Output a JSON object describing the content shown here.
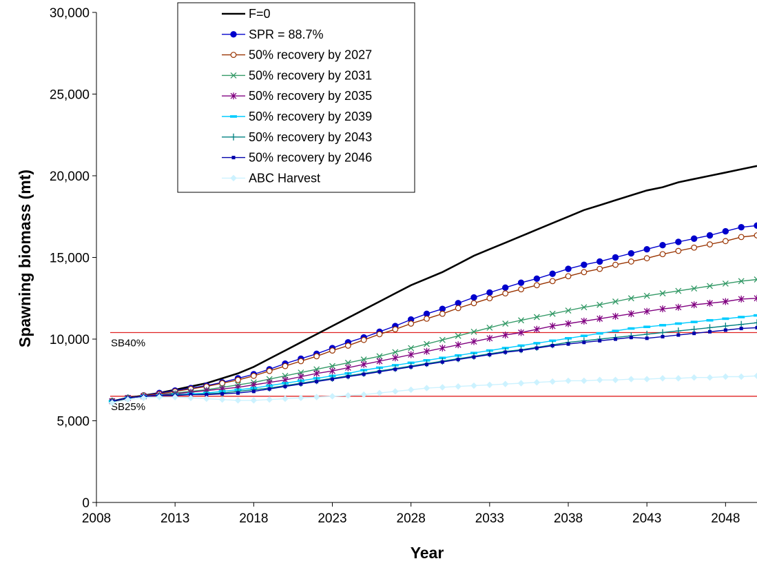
{
  "chart_data": {
    "type": "line",
    "title": "",
    "xlabel": "Year",
    "ylabel": "Spawning biomass (mt)",
    "xlim": [
      2008,
      2050
    ],
    "ylim": [
      0,
      30000
    ],
    "x_ticks": [
      2008,
      2013,
      2018,
      2023,
      2028,
      2033,
      2038,
      2043,
      2048
    ],
    "y_ticks": [
      0,
      5000,
      10000,
      15000,
      20000,
      25000,
      30000
    ],
    "x_tick_labels": [
      "2008",
      "2013",
      "2018",
      "2023",
      "2028",
      "2033",
      "2038",
      "2043",
      "2048"
    ],
    "y_tick_labels": [
      "0",
      "5,000",
      "10,000",
      "15,000",
      "20,000",
      "25,000",
      "30,000"
    ],
    "legend_position": "top-left",
    "grid": false,
    "reference_lines": [
      {
        "label": "SB40%",
        "y": 10400,
        "color": "#e02020"
      },
      {
        "label": "SB25%",
        "y": 6500,
        "color": "#e02020"
      }
    ],
    "x": [
      2009,
      2010,
      2011,
      2012,
      2013,
      2014,
      2015,
      2016,
      2017,
      2018,
      2019,
      2020,
      2021,
      2022,
      2023,
      2024,
      2025,
      2026,
      2027,
      2028,
      2029,
      2030,
      2031,
      2032,
      2033,
      2034,
      2035,
      2036,
      2037,
      2038,
      2039,
      2040,
      2041,
      2042,
      2043,
      2044,
      2045,
      2046,
      2047,
      2048,
      2049,
      2050
    ],
    "series": [
      {
        "name": "F=0",
        "color": "#000000",
        "marker": "none",
        "values": [
          6200,
          6400,
          6550,
          6700,
          6900,
          7100,
          7300,
          7600,
          7900,
          8300,
          8800,
          9300,
          9800,
          10300,
          10800,
          11300,
          11800,
          12300,
          12800,
          13300,
          13700,
          14100,
          14600,
          15100,
          15500,
          15900,
          16300,
          16700,
          17100,
          17500,
          17900,
          18200,
          18500,
          18800,
          19100,
          19300,
          19600,
          19800,
          20000,
          20200,
          20400,
          20600
        ]
      },
      {
        "name": "SPR = 88.7%",
        "color": "#0000cc",
        "marker": "dot",
        "values": [
          6200,
          6400,
          6550,
          6700,
          6850,
          7000,
          7150,
          7350,
          7600,
          7850,
          8150,
          8500,
          8800,
          9100,
          9450,
          9800,
          10100,
          10450,
          10800,
          11200,
          11550,
          11850,
          12200,
          12550,
          12850,
          13150,
          13450,
          13700,
          14000,
          14300,
          14550,
          14750,
          15000,
          15250,
          15500,
          15750,
          15950,
          16150,
          16350,
          16600,
          16850,
          16950
        ]
      },
      {
        "name": "50% recovery by 2027",
        "color": "#993300",
        "marker": "circle",
        "values": [
          6200,
          6400,
          6550,
          6650,
          6800,
          6950,
          7100,
          7300,
          7500,
          7750,
          8050,
          8350,
          8650,
          8950,
          9300,
          9600,
          9950,
          10300,
          10600,
          10950,
          11250,
          11550,
          11900,
          12200,
          12500,
          12800,
          13050,
          13300,
          13550,
          13850,
          14100,
          14300,
          14550,
          14750,
          14950,
          15200,
          15400,
          15600,
          15800,
          16000,
          16250,
          16350
        ]
      },
      {
        "name": "50% recovery by 2031",
        "color": "#339966",
        "marker": "x",
        "values": [
          6200,
          6400,
          6500,
          6600,
          6700,
          6800,
          6900,
          7050,
          7200,
          7350,
          7550,
          7750,
          7950,
          8150,
          8350,
          8550,
          8750,
          8950,
          9200,
          9450,
          9700,
          9950,
          10200,
          10450,
          10700,
          10950,
          11150,
          11350,
          11550,
          11750,
          11950,
          12100,
          12300,
          12500,
          12650,
          12800,
          12950,
          13100,
          13250,
          13400,
          13550,
          13650
        ]
      },
      {
        "name": "50% recovery by 2035",
        "color": "#800080",
        "marker": "star",
        "values": [
          6200,
          6400,
          6500,
          6600,
          6650,
          6750,
          6850,
          6950,
          7050,
          7200,
          7350,
          7500,
          7700,
          7900,
          8050,
          8250,
          8450,
          8650,
          8850,
          9050,
          9250,
          9450,
          9650,
          9850,
          10050,
          10250,
          10400,
          10600,
          10800,
          10950,
          11100,
          11250,
          11400,
          11550,
          11700,
          11850,
          11950,
          12100,
          12200,
          12300,
          12450,
          12500
        ]
      },
      {
        "name": "50% recovery by 2039",
        "color": "#00ccff",
        "marker": "dash",
        "values": [
          6200,
          6400,
          6500,
          6550,
          6600,
          6650,
          6700,
          6800,
          6900,
          7000,
          7150,
          7300,
          7450,
          7600,
          7750,
          7900,
          8100,
          8250,
          8400,
          8550,
          8700,
          8850,
          9000,
          9150,
          9300,
          9450,
          9600,
          9750,
          9900,
          10050,
          10200,
          10350,
          10500,
          10650,
          10750,
          10850,
          10950,
          11050,
          11150,
          11250,
          11350,
          11450
        ]
      },
      {
        "name": "50% recovery by 2043",
        "color": "#008080",
        "marker": "plus",
        "values": [
          6200,
          6400,
          6500,
          6550,
          6600,
          6600,
          6650,
          6700,
          6800,
          6900,
          7000,
          7150,
          7300,
          7450,
          7600,
          7750,
          7900,
          8050,
          8200,
          8350,
          8500,
          8650,
          8800,
          8950,
          9100,
          9250,
          9350,
          9500,
          9650,
          9800,
          9900,
          10000,
          10100,
          10200,
          10300,
          10400,
          10500,
          10600,
          10700,
          10800,
          10900,
          11000
        ]
      },
      {
        "name": "50% recovery by 2046",
        "color": "#0000aa",
        "marker": "smallsq",
        "values": [
          6200,
          6400,
          6500,
          6550,
          6550,
          6600,
          6600,
          6650,
          6700,
          6800,
          6950,
          7100,
          7250,
          7400,
          7550,
          7700,
          7850,
          8000,
          8150,
          8300,
          8450,
          8600,
          8750,
          8900,
          9050,
          9200,
          9300,
          9450,
          9600,
          9700,
          9800,
          9900,
          10000,
          10100,
          10050,
          10150,
          10250,
          10350,
          10450,
          10550,
          10650,
          10700
        ]
      },
      {
        "name": "ABC Harvest",
        "color": "#ccf2ff",
        "marker": "diamond",
        "values": [
          6100,
          6300,
          6400,
          6450,
          6450,
          6400,
          6350,
          6300,
          6250,
          6250,
          6300,
          6350,
          6400,
          6450,
          6500,
          6550,
          6600,
          6700,
          6800,
          6900,
          7000,
          7050,
          7100,
          7150,
          7200,
          7250,
          7300,
          7350,
          7400,
          7450,
          7450,
          7500,
          7500,
          7550,
          7550,
          7600,
          7600,
          7650,
          7650,
          7700,
          7700,
          7750
        ]
      }
    ]
  }
}
